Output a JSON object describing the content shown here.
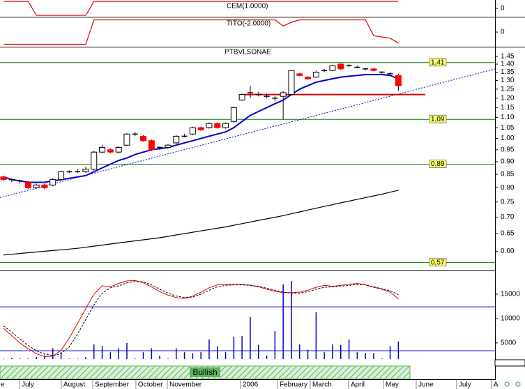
{
  "chart_data": [
    {
      "type": "line",
      "title": "CEM(1.0000)",
      "ylim": [
        -1.2,
        1.2
      ],
      "yticks": [
        0
      ],
      "color": "#e00000",
      "values": [
        1,
        1,
        1,
        1,
        -1,
        -1,
        -1,
        -1,
        -1,
        -1,
        -1,
        1,
        1,
        1,
        1,
        1,
        1,
        1,
        1,
        1,
        1,
        1,
        1,
        1,
        1,
        1,
        1,
        1,
        1,
        1,
        1,
        1,
        1,
        1,
        1,
        1,
        1,
        1,
        1,
        1,
        1,
        1,
        1,
        1,
        1,
        1,
        1,
        1,
        1
      ]
    },
    {
      "type": "line",
      "title": "TITO(-2.0000)",
      "ylim": [
        -1.2,
        1.2
      ],
      "yticks": [
        0
      ],
      "color": "#e00000",
      "values": [
        -1,
        -1,
        -1,
        -1,
        -1,
        -1,
        -1,
        -1,
        -1,
        -1,
        -1,
        1,
        1,
        1,
        1,
        1,
        1,
        1,
        1,
        1,
        1,
        1,
        1,
        1,
        1,
        1,
        1,
        1,
        1,
        1,
        1,
        1,
        1,
        1,
        0.5,
        0.8,
        1,
        1,
        1,
        1,
        1,
        1,
        1,
        1,
        1,
        -0.3,
        -0.4,
        -0.5,
        -0.9
      ]
    },
    {
      "type": "candlestick",
      "title": "PTBVLSONAE",
      "log_scale": true,
      "ylim": [
        0.55,
        1.51
      ],
      "yticks": [
        {
          "value": 0.6,
          "label": "0.60"
        },
        0.65,
        {
          "value": 0.7,
          "label": "0.70"
        },
        0.75,
        {
          "value": 0.8,
          "label": "0.80"
        },
        0.85,
        {
          "value": 0.9,
          "label": "0.90"
        },
        0.95,
        {
          "value": 1,
          "label": "1.00"
        },
        1.05,
        {
          "value": 1.1,
          "label": "1.10"
        },
        1.15,
        {
          "value": 1.2,
          "label": "1.20"
        },
        1.25,
        {
          "value": 1.3,
          "label": "1.30"
        },
        1.35,
        {
          "value": 1.4,
          "label": "1.40"
        },
        1.45
      ],
      "xlim": [
        -0.42,
        59.75
      ],
      "xticks": [
        {
          "value": -0.6,
          "label": "e"
        },
        {
          "value": 1.95,
          "label": "July"
        },
        {
          "value": 7.03,
          "label": "August"
        },
        {
          "value": 10.85,
          "label": "September"
        },
        {
          "value": 16.1,
          "label": "October"
        },
        {
          "value": 19.92,
          "label": "November"
        },
        {
          "value": 28.81,
          "label": "2006"
        },
        {
          "value": 33.31,
          "label": "February"
        },
        {
          "value": 37.29,
          "label": "March"
        },
        {
          "value": 41.95,
          "label": "April"
        },
        {
          "value": 46.19,
          "label": "May"
        },
        {
          "value": 50.17,
          "label": "June"
        },
        {
          "value": 55.08,
          "label": "July"
        },
        {
          "value": 59.32,
          "label": "A"
        }
      ],
      "up_color": "#ffffff",
      "down_color": "#ff0000",
      "open": [
        0.84,
        0.83,
        0.825,
        0.82,
        0.8,
        0.81,
        0.81,
        0.83,
        0.86,
        0.86,
        0.86,
        0.87,
        0.94,
        0.95,
        0.94,
        0.97,
        1.02,
        1.01,
        0.99,
        0.96,
        0.96,
        0.98,
        1.01,
        1.02,
        1.05,
        1.05,
        1.07,
        1.05,
        1.08,
        1.19,
        1.23,
        1.22,
        1.21,
        1.2,
        1.21,
        1.22,
        1.34,
        1.32,
        1.32,
        1.36,
        1.36,
        1.4,
        1.39,
        1.38,
        1.37,
        1.37,
        1.35,
        1.34,
        1.33
      ],
      "high": [
        0.845,
        0.835,
        0.83,
        0.825,
        0.815,
        0.815,
        0.835,
        0.865,
        0.865,
        0.87,
        0.88,
        0.945,
        0.97,
        0.955,
        0.965,
        1.025,
        1.03,
        1.015,
        0.995,
        0.965,
        0.975,
        1.015,
        1.02,
        1.055,
        1.055,
        1.075,
        1.075,
        1.075,
        1.155,
        1.225,
        1.27,
        1.235,
        1.225,
        1.21,
        1.24,
        1.365,
        1.345,
        1.325,
        1.36,
        1.37,
        1.395,
        1.405,
        1.4,
        1.39,
        1.375,
        1.375,
        1.355,
        1.35,
        1.34
      ],
      "low": [
        0.825,
        0.82,
        0.815,
        0.795,
        0.795,
        0.795,
        0.805,
        0.825,
        0.855,
        0.855,
        0.855,
        0.865,
        0.935,
        0.935,
        0.935,
        0.965,
        1.01,
        0.985,
        0.945,
        0.95,
        0.955,
        0.975,
        1.005,
        1.015,
        1.035,
        1.045,
        1.045,
        1.045,
        1.075,
        1.185,
        1.2,
        1.21,
        1.2,
        1.185,
        1.09,
        1.215,
        1.325,
        1.305,
        1.315,
        1.35,
        1.355,
        1.365,
        1.38,
        1.375,
        1.36,
        1.355,
        1.34,
        1.335,
        1.24
      ],
      "close": [
        0.83,
        0.83,
        0.825,
        0.8,
        0.81,
        0.8,
        0.83,
        0.86,
        0.86,
        0.86,
        0.87,
        0.94,
        0.96,
        0.94,
        0.96,
        1.02,
        1.02,
        0.99,
        0.95,
        0.96,
        0.97,
        1.01,
        1.01,
        1.05,
        1.04,
        1.07,
        1.05,
        1.07,
        1.15,
        1.22,
        1.23,
        1.22,
        1.21,
        1.2,
        1.23,
        1.36,
        1.33,
        1.31,
        1.35,
        1.36,
        1.39,
        1.37,
        1.39,
        1.38,
        1.37,
        1.36,
        1.35,
        1.34,
        1.27
      ],
      "overlays": [
        {
          "color": "#0000cc",
          "values": [
            0.84,
            0.83,
            0.825,
            0.82,
            0.82,
            0.82,
            0.825,
            0.83,
            0.835,
            0.84,
            0.845,
            0.86,
            0.875,
            0.89,
            0.905,
            0.915,
            0.93,
            0.94,
            0.95,
            0.955,
            0.96,
            0.97,
            0.98,
            0.99,
            1.0,
            1.01,
            1.02,
            1.03,
            1.05,
            1.08,
            1.11,
            1.13,
            1.15,
            1.17,
            1.19,
            1.22,
            1.25,
            1.27,
            1.29,
            1.3,
            1.31,
            1.32,
            1.325,
            1.33,
            1.335,
            1.335,
            1.335,
            1.33,
            1.31
          ]
        },
        {
          "color": "#000000",
          "values": [
            0.59,
            0.592,
            0.594,
            0.596,
            0.598,
            0.6,
            0.602,
            0.604,
            0.606,
            0.608,
            0.611,
            0.614,
            0.617,
            0.62,
            0.623,
            0.626,
            0.629,
            0.632,
            0.635,
            0.638,
            0.642,
            0.646,
            0.65,
            0.654,
            0.658,
            0.662,
            0.666,
            0.67,
            0.675,
            0.68,
            0.685,
            0.69,
            0.695,
            0.7,
            0.705,
            0.711,
            0.717,
            0.723,
            0.729,
            0.735,
            0.741,
            0.747,
            0.753,
            0.759,
            0.765,
            0.771,
            0.777,
            0.784,
            0.791
          ]
        }
      ],
      "trendline": [
        0.765,
        1.37
      ],
      "trendline_color": "#0000cc",
      "support": 1.22,
      "support_color": "#dd0000",
      "levels": [
        {
          "value": 1.41,
          "label": "1,41"
        },
        {
          "value": 1.09,
          "label": "1,09"
        },
        {
          "value": 0.89,
          "label": "0,89"
        },
        {
          "value": 0.57,
          "label": "0,57"
        }
      ],
      "level_color": "#008000"
    },
    {
      "type": "volume",
      "ylim": [
        1700,
        19850
      ],
      "yticks": [
        5000,
        10000,
        15000
      ],
      "color": "#0000cc",
      "values": [
        1800,
        1900,
        1800,
        1800,
        2100,
        2400,
        3900,
        3100,
        1800,
        1800,
        2100,
        4700,
        4400,
        3100,
        3900,
        5000,
        1800,
        3100,
        3900,
        2400,
        1800,
        3900,
        3100,
        2900,
        3100,
        5700,
        4300,
        3100,
        6300,
        6400,
        10300,
        4600,
        2400,
        7400,
        17000,
        17700,
        4700,
        3600,
        11300,
        3100,
        4700,
        4600,
        5700,
        3100,
        2900,
        2900,
        1800,
        4400,
        5300
      ],
      "lines": [
        {
          "color": "#e00000",
          "dashed": false,
          "values": [
            8000,
            6500,
            5000,
            3800,
            2800,
            2200,
            2300,
            3500,
            6000,
            9000,
            12000,
            15000,
            16700,
            16500,
            17200,
            17700,
            17800,
            17300,
            16500,
            15500,
            14800,
            14300,
            14100,
            14600,
            15400,
            16300,
            16900,
            17000,
            17000,
            17000,
            16800,
            16500,
            16000,
            15600,
            15300,
            15300,
            15400,
            15800,
            16400,
            16800,
            16600,
            16800,
            17000,
            17200,
            16900,
            16400,
            16000,
            15400,
            14000
          ]
        },
        {
          "color": "#000000",
          "dashed": true,
          "values": [
            8500,
            7200,
            5800,
            4500,
            3400,
            2700,
            2400,
            2800,
            4200,
            6800,
            9800,
            12800,
            15200,
            16300,
            16700,
            17300,
            17600,
            17500,
            16900,
            16000,
            15200,
            14600,
            14300,
            14400,
            15000,
            15800,
            16500,
            16800,
            16900,
            16900,
            16800,
            16600,
            16200,
            15800,
            15400,
            15200,
            15200,
            15500,
            16000,
            16400,
            16500,
            16600,
            16800,
            17000,
            16900,
            16500,
            16100,
            15700,
            14900
          ]
        }
      ],
      "hlines": [
        12400,
        3400
      ],
      "hline_color": "#0000cc",
      "signal": "Bullish",
      "signal_color": "#5fb35f"
    }
  ]
}
